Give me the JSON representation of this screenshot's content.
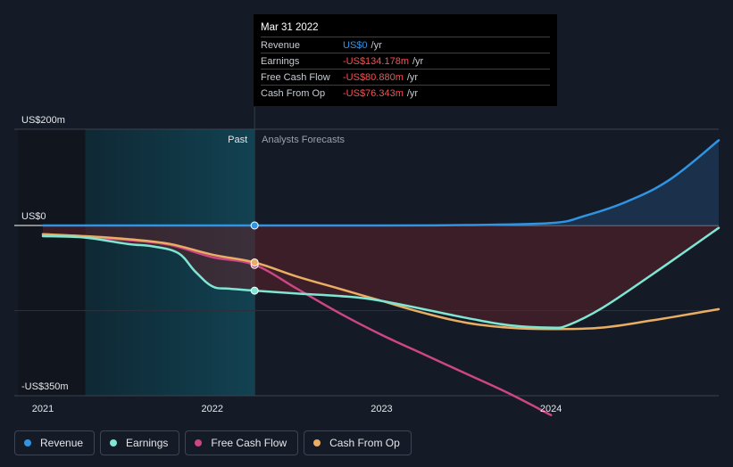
{
  "colors": {
    "background": "#151b26",
    "revenue": "#2f94e3",
    "earnings": "#7ee6d2",
    "free_cash_flow": "#cc4684",
    "cash_from_op": "#e9ad63",
    "past_band": "#0f3a48",
    "negative_fill": "#5b2128",
    "grid": "#3a414d",
    "axis_text": "#e4e6ea",
    "muted_text": "#9aa1ac"
  },
  "tooltip": {
    "date": "Mar 31 2022",
    "rows": [
      {
        "label": "Revenue",
        "value": "US$0",
        "unit": "/yr",
        "color": "#2f94e3"
      },
      {
        "label": "Earnings",
        "value": "-US$134.178m",
        "unit": "/yr",
        "color": "#ff4d4f"
      },
      {
        "label": "Free Cash Flow",
        "value": "-US$80.880m",
        "unit": "/yr",
        "color": "#ff4d4f"
      },
      {
        "label": "Cash From Op",
        "value": "-US$76.343m",
        "unit": "/yr",
        "color": "#ff4d4f"
      }
    ]
  },
  "labels": {
    "past": "Past",
    "forecast": "Analysts Forecasts"
  },
  "legend": [
    {
      "label": "Revenue",
      "color": "#2f94e3"
    },
    {
      "label": "Earnings",
      "color": "#7ee6d2"
    },
    {
      "label": "Free Cash Flow",
      "color": "#cc4684"
    },
    {
      "label": "Cash From Op",
      "color": "#e9ad63"
    }
  ],
  "chart_data": {
    "type": "line",
    "ylim": [
      -350,
      200
    ],
    "y_ticks": [
      {
        "value": 200,
        "label": "US$200m"
      },
      {
        "value": 0,
        "label": "US$0"
      },
      {
        "value": -350,
        "label": "-US$350m"
      }
    ],
    "x_range": [
      2021.0,
      2024.99
    ],
    "x_ticks": [
      {
        "value": 2021,
        "label": "2021"
      },
      {
        "value": 2022,
        "label": "2022"
      },
      {
        "value": 2023,
        "label": "2023"
      },
      {
        "value": 2024,
        "label": "2024"
      }
    ],
    "past_start": 2021.25,
    "forecast_start": 2022.25,
    "series": [
      {
        "name": "Revenue",
        "key": "revenue",
        "color": "#2f94e3",
        "points": [
          [
            2021.0,
            0
          ],
          [
            2021.5,
            0
          ],
          [
            2022.0,
            0
          ],
          [
            2022.25,
            0
          ],
          [
            2023.0,
            0
          ],
          [
            2023.5,
            1
          ],
          [
            2024.0,
            5
          ],
          [
            2024.2,
            20
          ],
          [
            2024.45,
            50
          ],
          [
            2024.7,
            95
          ],
          [
            2024.99,
            177
          ]
        ]
      },
      {
        "name": "Earnings",
        "key": "earnings",
        "color": "#7ee6d2",
        "points": [
          [
            2021.0,
            -22
          ],
          [
            2021.25,
            -25
          ],
          [
            2021.5,
            -38
          ],
          [
            2021.65,
            -43
          ],
          [
            2021.8,
            -57
          ],
          [
            2021.9,
            -95
          ],
          [
            2022.0,
            -125
          ],
          [
            2022.1,
            -130
          ],
          [
            2022.25,
            -134
          ],
          [
            2022.5,
            -140
          ],
          [
            2022.75,
            -145
          ],
          [
            2023.0,
            -155
          ],
          [
            2023.5,
            -190
          ],
          [
            2023.75,
            -205
          ],
          [
            2024.0,
            -210
          ],
          [
            2024.1,
            -205
          ],
          [
            2024.3,
            -170
          ],
          [
            2024.6,
            -100
          ],
          [
            2024.99,
            -5
          ]
        ]
      },
      {
        "name": "Free Cash Flow",
        "key": "free_cash_flow",
        "color": "#cc4684",
        "points": [
          [
            2021.0,
            -18
          ],
          [
            2021.25,
            -24
          ],
          [
            2021.5,
            -30
          ],
          [
            2021.75,
            -40
          ],
          [
            2022.0,
            -65
          ],
          [
            2022.25,
            -81
          ],
          [
            2022.5,
            -130
          ],
          [
            2022.75,
            -180
          ],
          [
            2023.0,
            -225
          ],
          [
            2023.25,
            -265
          ],
          [
            2023.5,
            -305
          ],
          [
            2023.75,
            -345
          ],
          [
            2024.0,
            -390
          ]
        ]
      },
      {
        "name": "Cash From Op",
        "key": "cash_from_op",
        "color": "#e9ad63",
        "points": [
          [
            2021.0,
            -18
          ],
          [
            2021.25,
            -22
          ],
          [
            2021.5,
            -28
          ],
          [
            2021.75,
            -38
          ],
          [
            2022.0,
            -60
          ],
          [
            2022.25,
            -76
          ],
          [
            2022.5,
            -105
          ],
          [
            2022.75,
            -130
          ],
          [
            2023.0,
            -155
          ],
          [
            2023.25,
            -180
          ],
          [
            2023.5,
            -200
          ],
          [
            2023.75,
            -210
          ],
          [
            2024.0,
            -213
          ],
          [
            2024.3,
            -210
          ],
          [
            2024.6,
            -195
          ],
          [
            2024.99,
            -172
          ]
        ]
      }
    ],
    "markers": [
      {
        "series": "revenue",
        "x": 2022.25,
        "y": 0
      },
      {
        "series": "earnings",
        "x": 2022.25,
        "y": -134
      },
      {
        "series": "free_cash_flow",
        "x": 2022.25,
        "y": -81
      },
      {
        "series": "cash_from_op",
        "x": 2022.25,
        "y": -76
      }
    ]
  }
}
